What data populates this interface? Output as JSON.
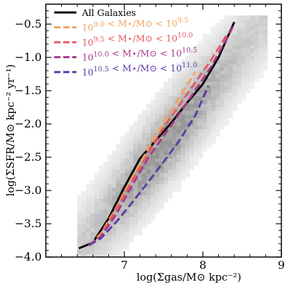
{
  "chart_data": {
    "type": "line",
    "title": "",
    "xlabel": "log(Σgas/M⊙ kpc⁻²)",
    "ylabel": "log(ΣSFR/M⊙ kpc⁻² yr⁻¹)",
    "xlim": [
      6.0,
      9.0
    ],
    "ylim": [
      -4.0,
      -0.2
    ],
    "xticks": [
      7,
      8,
      9
    ],
    "yticks": [
      -4.0,
      -3.5,
      -3.0,
      -2.5,
      -2.0,
      -1.5,
      -1.0,
      -0.5
    ],
    "ytick_labels": [
      "−4.0",
      "−3.5",
      "−3.0",
      "−2.5",
      "−2.0",
      "−1.5",
      "−1.0",
      "−0.5"
    ],
    "grid": false,
    "legend_position": "top-left",
    "background_density": "grey 2D histogram of all galaxies",
    "series": [
      {
        "name": "All Galaxies",
        "color": "#000000",
        "dash": "solid",
        "x": [
          6.42,
          6.6,
          6.8,
          7.0,
          7.2,
          7.4,
          7.6,
          7.8,
          8.0,
          8.2,
          8.4
        ],
        "y": [
          -3.87,
          -3.78,
          -3.42,
          -2.95,
          -2.52,
          -2.25,
          -1.98,
          -1.68,
          -1.4,
          -1.0,
          -0.47
        ]
      },
      {
        "name": "10^9.0 < M⋆/M⊙ < 10^9.5",
        "color": "#f4a25d",
        "dash": "dashed",
        "x": [
          6.55,
          6.7,
          6.9,
          7.1,
          7.3,
          7.5,
          7.7,
          7.9
        ],
        "y": [
          -3.82,
          -3.65,
          -3.25,
          -2.8,
          -2.38,
          -1.98,
          -1.6,
          -1.22
        ]
      },
      {
        "name": "10^9.5 < M⋆/M⊙ < 10^10.0",
        "color": "#e45a5f",
        "dash": "dashed",
        "x": [
          6.55,
          6.7,
          6.9,
          7.1,
          7.3,
          7.5,
          7.7,
          7.9,
          8.1,
          8.3
        ],
        "y": [
          -3.83,
          -3.68,
          -3.28,
          -2.85,
          -2.45,
          -2.05,
          -1.72,
          -1.38,
          -1.05,
          -0.67
        ]
      },
      {
        "name": "10^10.0 < M⋆/M⊙ < 10^10.5",
        "color": "#a8388a",
        "dash": "dashed",
        "x": [
          6.55,
          6.7,
          6.9,
          7.1,
          7.3,
          7.5,
          7.7,
          7.9,
          8.1,
          8.3,
          8.4
        ],
        "y": [
          -3.82,
          -3.7,
          -3.35,
          -2.92,
          -2.52,
          -2.18,
          -1.85,
          -1.5,
          -1.15,
          -0.73,
          -0.5
        ]
      },
      {
        "name": "10^10.5 < M⋆/M⊙ < 10^11.0",
        "color": "#5b3ba4",
        "dash": "dashed",
        "x": [
          6.55,
          6.7,
          6.9,
          7.1,
          7.3,
          7.5,
          7.7,
          7.9,
          8.07
        ],
        "y": [
          -3.82,
          -3.72,
          -3.47,
          -3.18,
          -2.88,
          -2.57,
          -2.25,
          -1.88,
          -1.43
        ]
      }
    ],
    "legend": [
      {
        "kind": "plain",
        "text": "All Galaxies",
        "color": "#000000"
      },
      {
        "kind": "range",
        "lo_base": "10",
        "lo_exp": "9.0",
        "mid": " < M⋆/M⊙ < ",
        "hi_base": "10",
        "hi_exp": "9.5",
        "color": "#f4a25d"
      },
      {
        "kind": "range",
        "lo_base": "10",
        "lo_exp": "9.5",
        "mid": " < M⋆/M⊙ < ",
        "hi_base": "10",
        "hi_exp": "10.0",
        "color": "#e45a5f"
      },
      {
        "kind": "range",
        "lo_base": "10",
        "lo_exp": "10.0",
        "mid": " < M⋆/M⊙ < ",
        "hi_base": "10",
        "hi_exp": "10.5",
        "color": "#a8388a"
      },
      {
        "kind": "range",
        "lo_base": "10",
        "lo_exp": "10.5",
        "mid": " < M⋆/M⊙ < ",
        "hi_base": "10",
        "hi_exp": "11.0",
        "color": "#5b3ba4"
      }
    ]
  }
}
